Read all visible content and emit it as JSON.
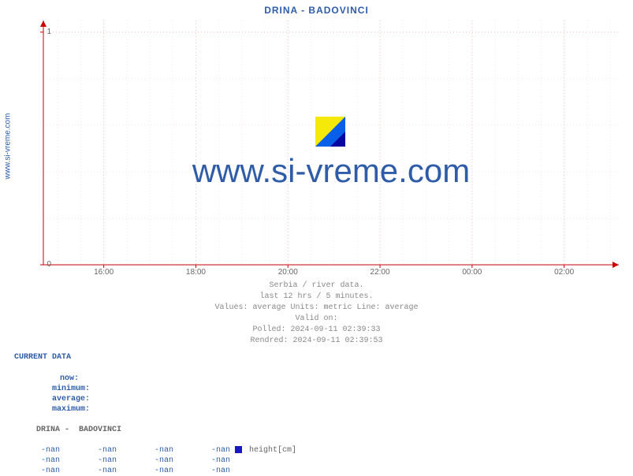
{
  "chart": {
    "title": "DRINA -  BADOVINCI",
    "ylabel_rotated": "www.si-vreme.com",
    "watermark_text": "www.si-vreme.com",
    "background_color": "#ffffff",
    "plot_bg": "#ffffff",
    "axis_color": "#000000",
    "grid_major_color": "#f2c0c0",
    "grid_minor_color": "#f6e6e6",
    "grid_dash": "1,3",
    "title_color": "#2e5ca8",
    "watermark_color": "#2e5ca8",
    "y": {
      "min": 0,
      "max": 1.05,
      "ticks": [
        0,
        1
      ],
      "tick_labels": [
        "0",
        "1"
      ],
      "minor_steps": 5
    },
    "x": {
      "labels": [
        "16:00",
        "18:00",
        "20:00",
        "22:00",
        "00:00",
        "02:00"
      ],
      "positions_pct": [
        10.5,
        26.5,
        42.5,
        58.5,
        74.5,
        90.5
      ],
      "minor_per_major": 4
    },
    "series": [
      {
        "name": "height[cm]",
        "color": "#1818c0",
        "data": []
      }
    ],
    "watermark_icon": {
      "colors": [
        "#f5e90a",
        "#0a5fe8",
        "#0808a0"
      ],
      "type": "diagonal-split"
    }
  },
  "subtitle": {
    "line1": "Serbia / river data.",
    "line2": "last 12 hrs / 5 minutes.",
    "line3": "Values: average  Units: metric  Line: average",
    "line4": "Valid on:",
    "line5": "Polled: 2024-09-11 02:39:33",
    "line6": "Rendred: 2024-09-11 02:39:53"
  },
  "data_table": {
    "header": "CURRENT DATA",
    "columns": [
      "now:",
      "minimum:",
      "average:",
      "maximum:"
    ],
    "series_header": "DRINA -  BADOVINCI",
    "rows": [
      {
        "now": "-nan",
        "min": "-nan",
        "avg": "-nan",
        "max": "-nan",
        "swatch": "#1818c0",
        "label": "height[cm]"
      },
      {
        "now": "-nan",
        "min": "-nan",
        "avg": "-nan",
        "max": "-nan",
        "swatch": null,
        "label": ""
      },
      {
        "now": "-nan",
        "min": "-nan",
        "avg": "-nan",
        "max": "-nan",
        "swatch": null,
        "label": ""
      }
    ]
  }
}
